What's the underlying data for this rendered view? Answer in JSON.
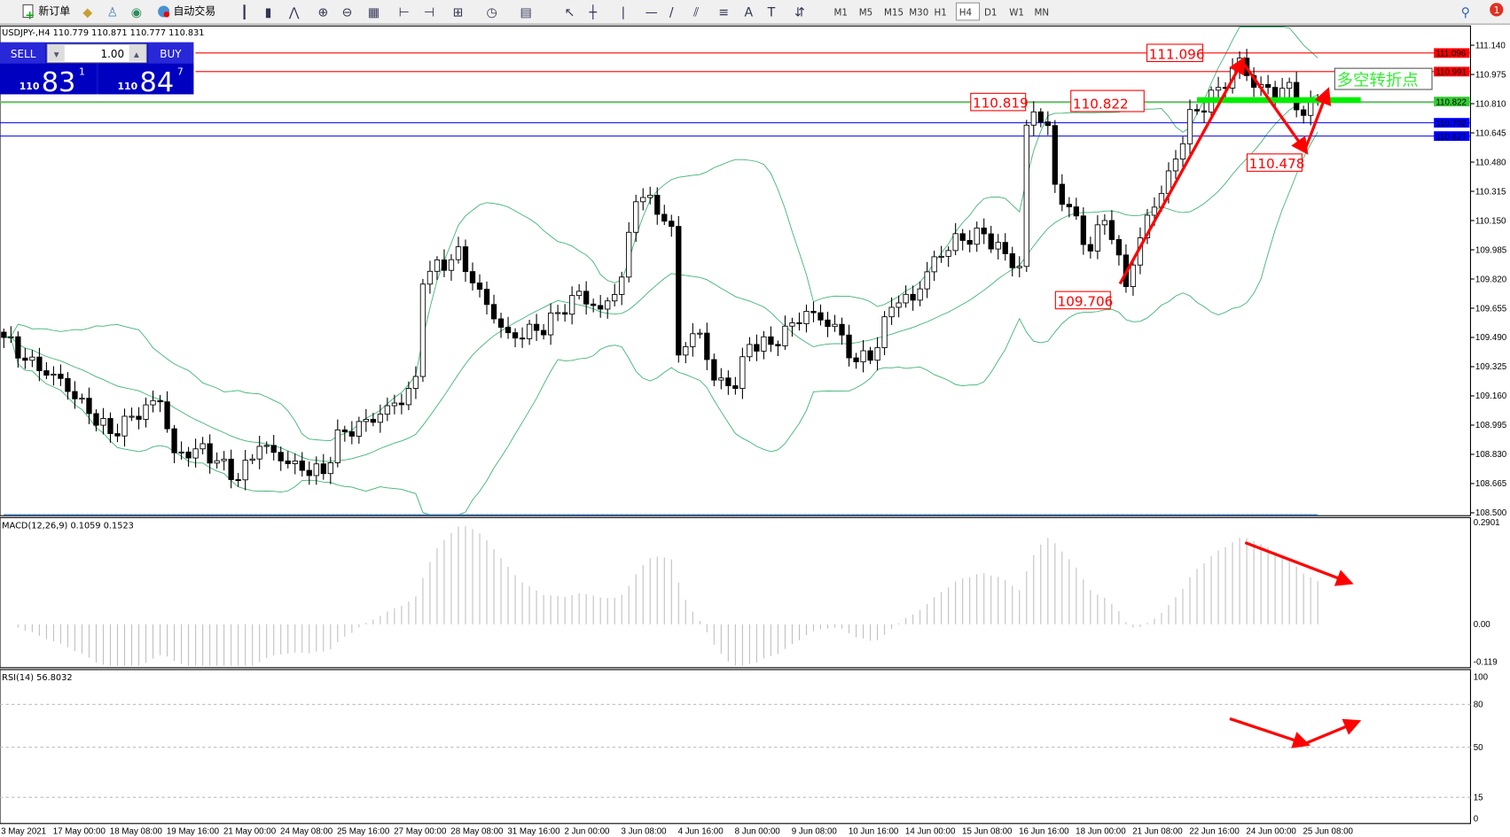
{
  "toolbar": {
    "new_order_label": "新订单",
    "auto_trading_label": "自动交易",
    "timeframes": [
      "M1",
      "M5",
      "M15",
      "M30",
      "H1",
      "H4",
      "D1",
      "W1",
      "MN"
    ],
    "active_timeframe": "H4",
    "notification_count": "1"
  },
  "chart": {
    "header": "USDJPY-,H4  110.779 110.871 110.777 110.831",
    "symbol": "USDJPY-",
    "timeframe": "H4",
    "ohlc": {
      "open": 110.779,
      "high": 110.871,
      "low": 110.777,
      "close": 110.831
    }
  },
  "trade_panel": {
    "sell_label": "SELL",
    "buy_label": "BUY",
    "lot_value": "1.00",
    "sell_price": {
      "big": "110",
      "main": "83",
      "sup": "1"
    },
    "buy_price": {
      "big": "110",
      "main": "84",
      "sup": "7"
    }
  },
  "annotations": {
    "labels": [
      "111.096",
      "110.819",
      "110.822",
      "109.706",
      "110.478"
    ],
    "note": "多空转折点"
  },
  "price_tags": [
    {
      "value": "111.096",
      "color": "#ff0000"
    },
    {
      "value": "110.991",
      "color": "#ff0000"
    },
    {
      "value": "110.822",
      "color": "#33cc33"
    },
    {
      "value": "110.702",
      "color": "#0000ff"
    },
    {
      "value": "110.627",
      "color": "#0000ff"
    }
  ],
  "macd": {
    "header": "MACD(12,26,9) 0.1059 0.1523",
    "axis": [
      "0.2901",
      "0.00",
      "-0.119"
    ]
  },
  "rsi": {
    "header": "RSI(14) 56.8032",
    "axis": [
      "100",
      "80",
      "50",
      "15",
      "0"
    ]
  },
  "chart_data": {
    "type": "candlestick",
    "symbol": "USDJPY",
    "price_axis": [
      "111.140",
      "110.975",
      "110.810",
      "110.645",
      "110.480",
      "110.315",
      "110.150",
      "109.985",
      "109.820",
      "109.655",
      "109.490",
      "109.325",
      "109.160",
      "108.995",
      "108.830",
      "108.665",
      "108.500"
    ],
    "ylim": [
      108.5,
      111.14
    ],
    "time_labels": [
      "3 May 2021",
      "17 May 00:00",
      "18 May 08:00",
      "19 May 16:00",
      "21 May 00:00",
      "24 May 08:00",
      "25 May 16:00",
      "27 May 00:00",
      "28 May 08:00",
      "31 May 16:00",
      "2 Jun 00:00",
      "3 Jun 08:00",
      "4 Jun 16:00",
      "8 Jun 00:00",
      "9 Jun 08:00",
      "10 Jun 16:00",
      "14 Jun 00:00",
      "15 Jun 08:00",
      "16 Jun 16:00",
      "18 Jun 00:00",
      "21 Jun 08:00",
      "22 Jun 16:00",
      "24 Jun 00:00",
      "25 Jun 08:00"
    ],
    "close_keyframes": [
      [
        0,
        109.49
      ],
      [
        3,
        109.39
      ],
      [
        8,
        109.28
      ],
      [
        15,
        108.95
      ],
      [
        22,
        109.11
      ],
      [
        24,
        108.79
      ],
      [
        28,
        108.84
      ],
      [
        33,
        108.71
      ],
      [
        36,
        108.92
      ],
      [
        41,
        108.79
      ],
      [
        45,
        108.73
      ],
      [
        47,
        108.92
      ],
      [
        52,
        109.0
      ],
      [
        56,
        109.11
      ],
      [
        58,
        109.22
      ],
      [
        59,
        109.82
      ],
      [
        64,
        109.98
      ],
      [
        67,
        109.77
      ],
      [
        71,
        109.52
      ],
      [
        76,
        109.55
      ],
      [
        81,
        109.71
      ],
      [
        84,
        109.6
      ],
      [
        87,
        109.79
      ],
      [
        89,
        110.28
      ],
      [
        92,
        110.23
      ],
      [
        94,
        110.09
      ],
      [
        95,
        109.44
      ],
      [
        98,
        109.55
      ],
      [
        100,
        109.28
      ],
      [
        103,
        109.25
      ],
      [
        105,
        109.47
      ],
      [
        108,
        109.44
      ],
      [
        113,
        109.6
      ],
      [
        117,
        109.52
      ],
      [
        120,
        109.33
      ],
      [
        123,
        109.44
      ],
      [
        125,
        109.71
      ],
      [
        128,
        109.74
      ],
      [
        131,
        109.96
      ],
      [
        134,
        110.06
      ],
      [
        138,
        110.07
      ],
      [
        141,
        109.93
      ],
      [
        143,
        109.85
      ],
      [
        144,
        110.64
      ],
      [
        145,
        110.74
      ],
      [
        147,
        110.64
      ],
      [
        148,
        110.31
      ],
      [
        150,
        110.2
      ],
      [
        153,
        109.98
      ],
      [
        155,
        110.2
      ],
      [
        158,
        109.82
      ],
      [
        161,
        110.2
      ],
      [
        164,
        110.42
      ],
      [
        167,
        110.74
      ],
      [
        169,
        110.8
      ],
      [
        172,
        110.91
      ],
      [
        174,
        111.02
      ],
      [
        176,
        110.88
      ],
      [
        179,
        110.85
      ],
      [
        181,
        110.88
      ],
      [
        183,
        110.74
      ],
      [
        185,
        110.831
      ]
    ],
    "indicators": [
      "Bollinger Bands(20,2)",
      "MACD(12,26,9)",
      "RSI(14)"
    ],
    "horizontal_lines": [
      111.096,
      110.991,
      110.822,
      110.702,
      110.627
    ],
    "colors": {
      "bands": "#3cb371",
      "lines_red": "#ff0000",
      "lines_blue": "#0000ff",
      "support": "#00ee00",
      "rsi": "#1e90ff",
      "macd_signal": "#ff0000",
      "macd_hist": "#c0c0c0"
    }
  }
}
